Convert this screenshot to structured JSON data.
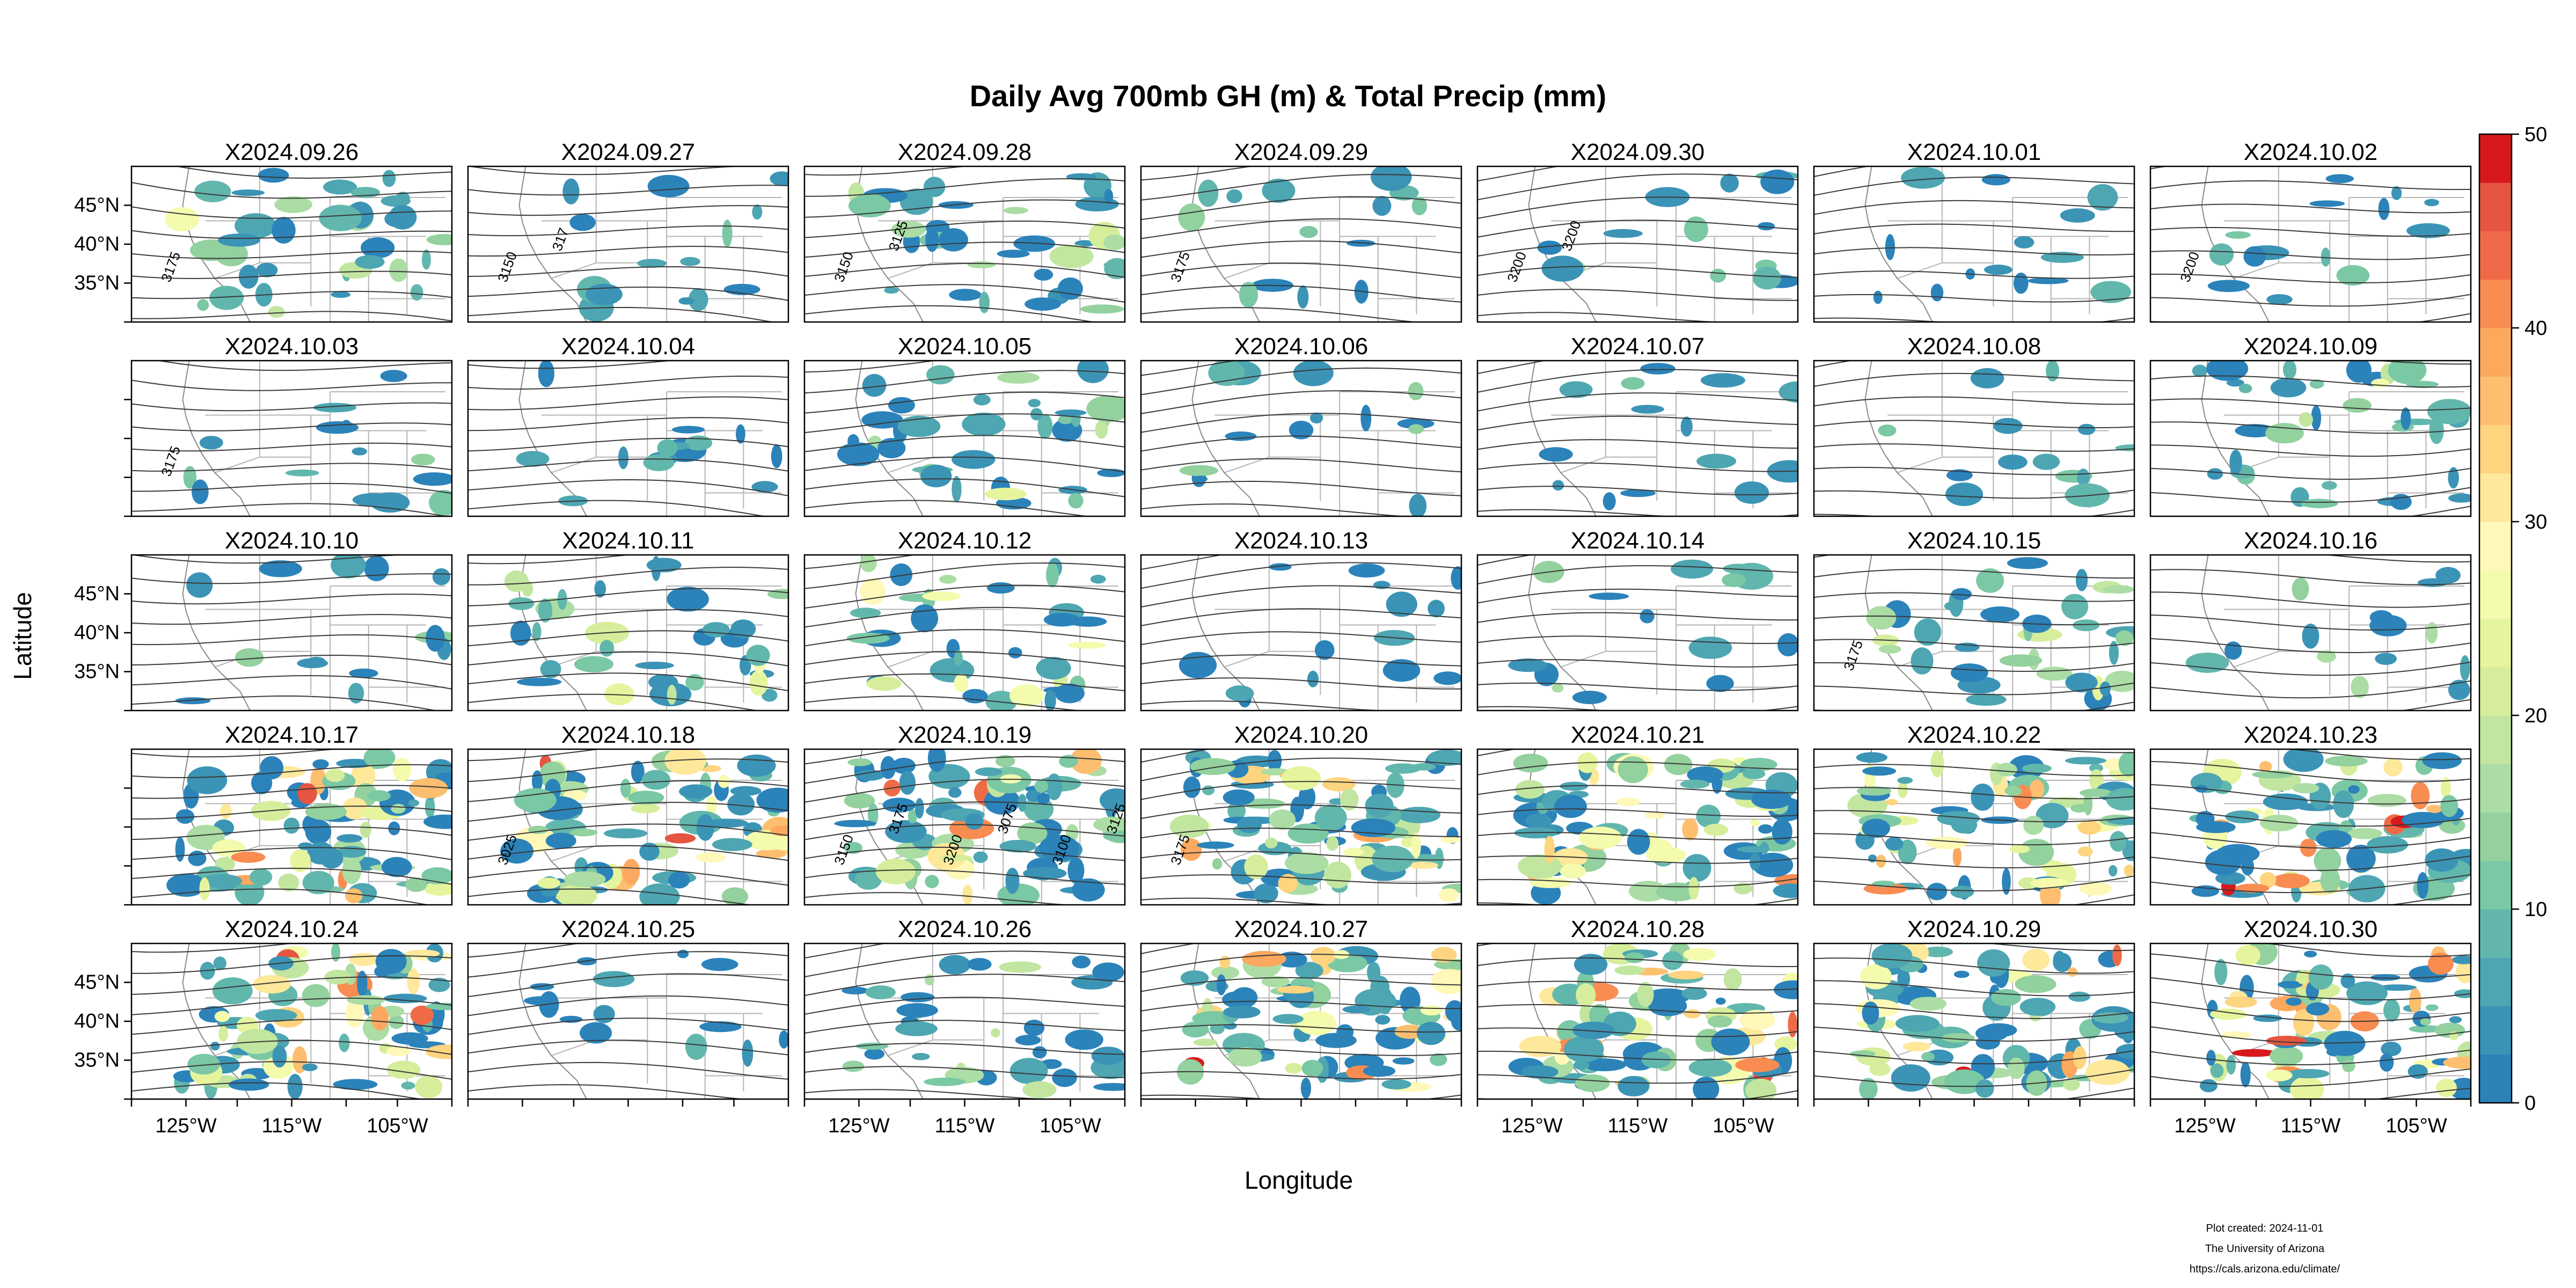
{
  "title": "Daily Avg 700mb GH (m) & Total Precip (mm)",
  "xlabel": "Longitude",
  "ylabel": "Latitude",
  "panels": [
    "X2024.09.26",
    "X2024.09.27",
    "X2024.09.28",
    "X2024.09.29",
    "X2024.09.30",
    "X2024.10.01",
    "X2024.10.02",
    "X2024.10.03",
    "X2024.10.04",
    "X2024.10.05",
    "X2024.10.06",
    "X2024.10.07",
    "X2024.10.08",
    "X2024.10.09",
    "X2024.10.10",
    "X2024.10.11",
    "X2024.10.12",
    "X2024.10.13",
    "X2024.10.14",
    "X2024.10.15",
    "X2024.10.16",
    "X2024.10.17",
    "X2024.10.18",
    "X2024.10.19",
    "X2024.10.20",
    "X2024.10.21",
    "X2024.10.22",
    "X2024.10.23",
    "X2024.10.24",
    "X2024.10.25",
    "X2024.10.26",
    "X2024.10.27",
    "X2024.10.28",
    "X2024.10.29",
    "X2024.10.30"
  ],
  "lat_ticks": [
    "45°N",
    "40°N",
    "35°N"
  ],
  "lon_ticks": [
    "125°W",
    "115°W",
    "105°W"
  ],
  "lat_tick_columns": [
    0
  ],
  "lat_tick_rows": [
    0,
    2,
    4
  ],
  "lon_tick_columns": [
    0,
    2,
    4,
    6
  ],
  "colorbar": {
    "ticks": [
      "0",
      "10",
      "20",
      "30",
      "40",
      "50"
    ],
    "range": [
      0,
      50
    ],
    "colors": [
      "#2b83ba",
      "#3b94b6",
      "#4da6b2",
      "#62b7ad",
      "#7bc8a4",
      "#93d19e",
      "#abdda4",
      "#c2e6a0",
      "#d6ee9b",
      "#e6f59d",
      "#f4fbad",
      "#fff8b8",
      "#fee89a",
      "#fed47f",
      "#fdbf6f",
      "#fca85e",
      "#f88c51",
      "#ef6b48",
      "#e55541",
      "#d7191c"
    ]
  },
  "contour_labels": [
    {
      "panel": 0,
      "text": "3175"
    },
    {
      "panel": 1,
      "text": "3150"
    },
    {
      "panel": 1,
      "text": "317"
    },
    {
      "panel": 2,
      "text": "3150"
    },
    {
      "panel": 2,
      "text": "3125"
    },
    {
      "panel": 3,
      "text": "3175"
    },
    {
      "panel": 4,
      "text": "3200"
    },
    {
      "panel": 4,
      "text": "3200"
    },
    {
      "panel": 6,
      "text": "3200"
    },
    {
      "panel": 7,
      "text": "3175"
    },
    {
      "panel": 19,
      "text": "3175"
    },
    {
      "panel": 22,
      "text": "3025"
    },
    {
      "panel": 23,
      "text": "3150"
    },
    {
      "panel": 23,
      "text": "3175"
    },
    {
      "panel": 23,
      "text": "3200"
    },
    {
      "panel": 23,
      "text": "3075"
    },
    {
      "panel": 23,
      "text": "3100"
    },
    {
      "panel": 23,
      "text": "3125"
    },
    {
      "panel": 24,
      "text": "3175"
    }
  ],
  "footer": {
    "line1": "Plot created: 2024-11-01",
    "line2": "The University of Arizona",
    "line3": "https://cals.arizona.edu/climate/"
  }
}
